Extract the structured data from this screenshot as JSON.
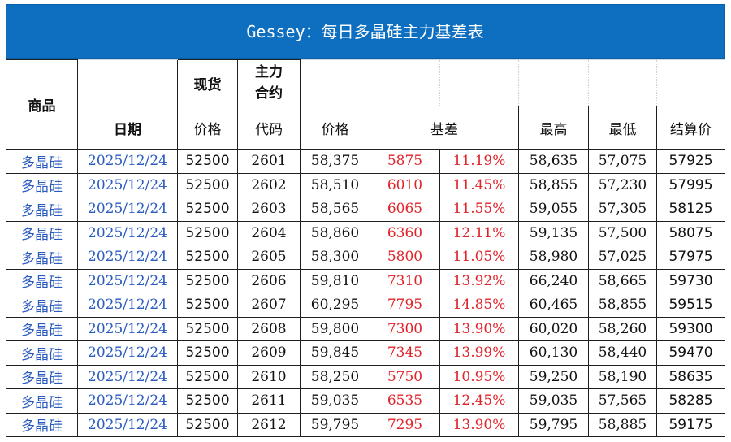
{
  "title": "Gessey：每日多晶硅主力基差表",
  "headers": {
    "product": "商品",
    "spot": "现货",
    "main_contract_line1": "主力",
    "main_contract_line2": "合约",
    "date": "日期",
    "price": "价格",
    "code": "代码",
    "fut_price": "价格",
    "basis": "基差",
    "high": "最高",
    "low": "最低",
    "settle": "结算价"
  },
  "rows": [
    {
      "product": "多晶硅",
      "date": "2025/12/24",
      "spot": "52500",
      "code": "2601",
      "price": "58,375",
      "basis": "5875",
      "basis_pct": "11.19%",
      "high": "58,635",
      "low": "57,075",
      "settle": "57925"
    },
    {
      "product": "多晶硅",
      "date": "2025/12/24",
      "spot": "52500",
      "code": "2602",
      "price": "58,510",
      "basis": "6010",
      "basis_pct": "11.45%",
      "high": "58,855",
      "low": "57,230",
      "settle": "57995"
    },
    {
      "product": "多晶硅",
      "date": "2025/12/24",
      "spot": "52500",
      "code": "2603",
      "price": "58,565",
      "basis": "6065",
      "basis_pct": "11.55%",
      "high": "59,055",
      "low": "57,305",
      "settle": "58125"
    },
    {
      "product": "多晶硅",
      "date": "2025/12/24",
      "spot": "52500",
      "code": "2604",
      "price": "58,860",
      "basis": "6360",
      "basis_pct": "12.11%",
      "high": "59,135",
      "low": "57,500",
      "settle": "58075"
    },
    {
      "product": "多晶硅",
      "date": "2025/12/24",
      "spot": "52500",
      "code": "2605",
      "price": "58,300",
      "basis": "5800",
      "basis_pct": "11.05%",
      "high": "58,980",
      "low": "57,025",
      "settle": "57975"
    },
    {
      "product": "多晶硅",
      "date": "2025/12/24",
      "spot": "52500",
      "code": "2606",
      "price": "59,810",
      "basis": "7310",
      "basis_pct": "13.92%",
      "high": "66,240",
      "low": "58,665",
      "settle": "59730"
    },
    {
      "product": "多晶硅",
      "date": "2025/12/24",
      "spot": "52500",
      "code": "2607",
      "price": "60,295",
      "basis": "7795",
      "basis_pct": "14.85%",
      "high": "60,465",
      "low": "58,855",
      "settle": "59515"
    },
    {
      "product": "多晶硅",
      "date": "2025/12/24",
      "spot": "52500",
      "code": "2608",
      "price": "59,800",
      "basis": "7300",
      "basis_pct": "13.90%",
      "high": "60,020",
      "low": "58,260",
      "settle": "59300"
    },
    {
      "product": "多晶硅",
      "date": "2025/12/24",
      "spot": "52500",
      "code": "2609",
      "price": "59,845",
      "basis": "7345",
      "basis_pct": "13.99%",
      "high": "60,130",
      "low": "58,440",
      "settle": "59470"
    },
    {
      "product": "多晶硅",
      "date": "2025/12/24",
      "spot": "52500",
      "code": "2610",
      "price": "58,250",
      "basis": "5750",
      "basis_pct": "10.95%",
      "high": "59,250",
      "low": "58,190",
      "settle": "58635"
    },
    {
      "product": "多晶硅",
      "date": "2025/12/24",
      "spot": "52500",
      "code": "2611",
      "price": "59,035",
      "basis": "6535",
      "basis_pct": "12.45%",
      "high": "59,035",
      "low": "57,565",
      "settle": "58285"
    },
    {
      "product": "多晶硅",
      "date": "2025/12/24",
      "spot": "52500",
      "code": "2612",
      "price": "59,795",
      "basis": "7295",
      "basis_pct": "13.90%",
      "high": "59,795",
      "low": "58,885",
      "settle": "59175"
    }
  ]
}
